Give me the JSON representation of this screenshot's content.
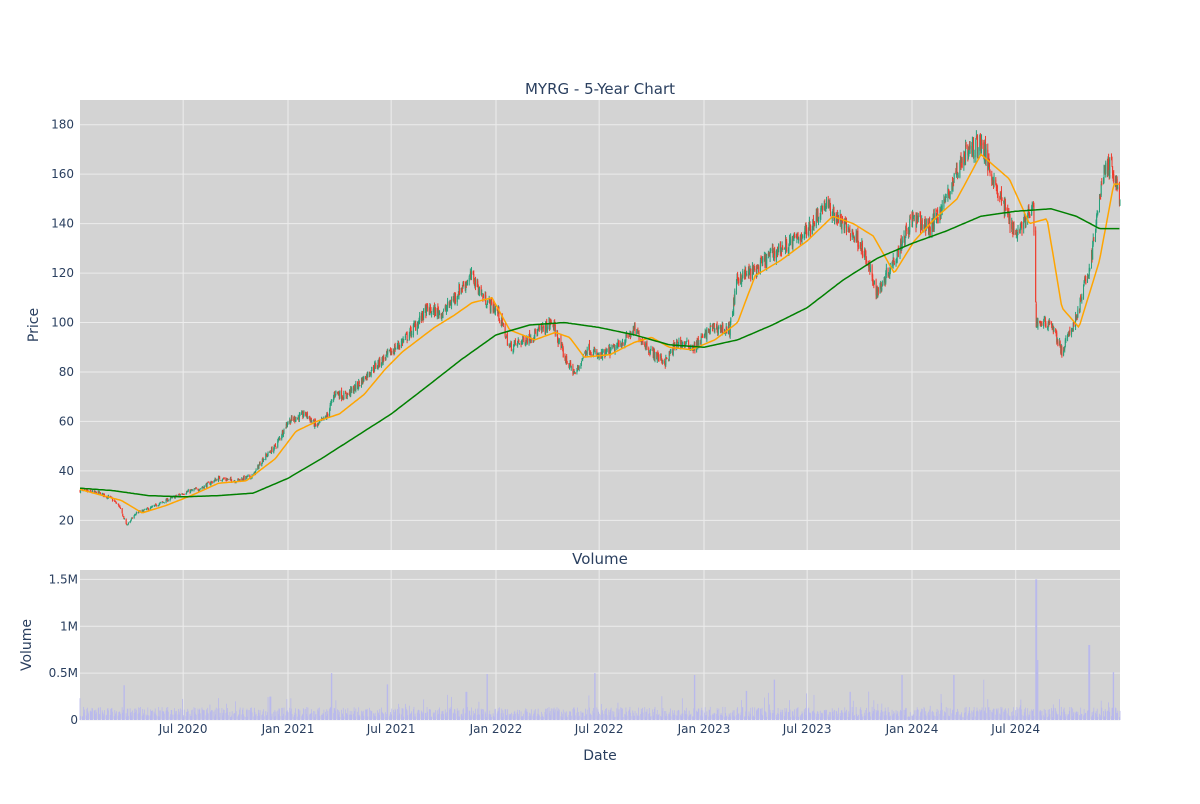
{
  "chart_data": {
    "type": "candlestick",
    "title": "MYRG - 5-Year Chart",
    "xlabel": "Date",
    "colors": {
      "background": "#d3d3d3",
      "grid": "#ececec",
      "up": "#26a17a",
      "down": "#ef3b2c",
      "ma_short": "#ffa500",
      "ma_long": "#008000",
      "volume": "#b9b9ec",
      "text": "#2a3f5f"
    },
    "price_panel": {
      "ylabel": "Price",
      "ylim": [
        8,
        190
      ],
      "yticks": [
        20,
        40,
        60,
        80,
        100,
        120,
        140,
        160,
        180
      ],
      "series": [
        {
          "name": "Close (candlestick)",
          "type": "candlestick"
        },
        {
          "name": "Short moving average",
          "color": "#ffa500"
        },
        {
          "name": "Long moving average",
          "color": "#008000"
        }
      ],
      "close_waypoints": [
        [
          "2020-01-02",
          32
        ],
        [
          "2020-02-05",
          31
        ],
        [
          "2020-02-25",
          29
        ],
        [
          "2020-03-10",
          26
        ],
        [
          "2020-03-24",
          18
        ],
        [
          "2020-04-10",
          23
        ],
        [
          "2020-05-05",
          25
        ],
        [
          "2020-06-01",
          28
        ],
        [
          "2020-07-01",
          31
        ],
        [
          "2020-08-01",
          33
        ],
        [
          "2020-09-01",
          37
        ],
        [
          "2020-10-01",
          36
        ],
        [
          "2020-11-01",
          38
        ],
        [
          "2020-11-15",
          44
        ],
        [
          "2020-12-10",
          50
        ],
        [
          "2021-01-01",
          60
        ],
        [
          "2021-02-01",
          63
        ],
        [
          "2021-02-20",
          58
        ],
        [
          "2021-03-10",
          62
        ],
        [
          "2021-03-25",
          72
        ],
        [
          "2021-04-10",
          70
        ],
        [
          "2021-05-01",
          74
        ],
        [
          "2021-06-01",
          82
        ],
        [
          "2021-07-01",
          88
        ],
        [
          "2021-08-01",
          95
        ],
        [
          "2021-09-01",
          105
        ],
        [
          "2021-10-01",
          104
        ],
        [
          "2021-11-01",
          114
        ],
        [
          "2021-11-20",
          119
        ],
        [
          "2021-12-10",
          110
        ],
        [
          "2022-01-05",
          104
        ],
        [
          "2022-01-25",
          90
        ],
        [
          "2022-03-01",
          94
        ],
        [
          "2022-04-10",
          100
        ],
        [
          "2022-05-01",
          86
        ],
        [
          "2022-05-20",
          79
        ],
        [
          "2022-06-10",
          90
        ],
        [
          "2022-07-01",
          86
        ],
        [
          "2022-08-01",
          90
        ],
        [
          "2022-09-01",
          97
        ],
        [
          "2022-10-01",
          88
        ],
        [
          "2022-10-25",
          84
        ],
        [
          "2022-11-15",
          92
        ],
        [
          "2022-12-15",
          90
        ],
        [
          "2023-01-15",
          98
        ],
        [
          "2023-02-15",
          97
        ],
        [
          "2023-03-01",
          118
        ],
        [
          "2023-04-01",
          121
        ],
        [
          "2023-05-01",
          128
        ],
        [
          "2023-06-01",
          132
        ],
        [
          "2023-07-01",
          137
        ],
        [
          "2023-08-01",
          148
        ],
        [
          "2023-09-01",
          140
        ],
        [
          "2023-10-01",
          133
        ],
        [
          "2023-11-01",
          112
        ],
        [
          "2023-12-01",
          126
        ],
        [
          "2024-01-01",
          142
        ],
        [
          "2024-02-01",
          138
        ],
        [
          "2024-03-01",
          150
        ],
        [
          "2024-04-01",
          168
        ],
        [
          "2024-05-01",
          173
        ],
        [
          "2024-06-01",
          152
        ],
        [
          "2024-07-01",
          136
        ],
        [
          "2024-08-01",
          146
        ],
        [
          "2024-08-06",
          100
        ],
        [
          "2024-09-01",
          100
        ],
        [
          "2024-09-20",
          88
        ],
        [
          "2024-10-15",
          102
        ],
        [
          "2024-11-10",
          125
        ],
        [
          "2024-12-01",
          160
        ],
        [
          "2024-12-15",
          164
        ],
        [
          "2024-12-31",
          150
        ]
      ],
      "ma_short_waypoints": [
        [
          "2020-01-02",
          32.5
        ],
        [
          "2020-03-15",
          28
        ],
        [
          "2020-04-20",
          23
        ],
        [
          "2020-06-01",
          26
        ],
        [
          "2020-07-15",
          30
        ],
        [
          "2020-09-01",
          35
        ],
        [
          "2020-10-20",
          36
        ],
        [
          "2020-12-10",
          45
        ],
        [
          "2021-01-15",
          56
        ],
        [
          "2021-02-20",
          60
        ],
        [
          "2021-04-01",
          63
        ],
        [
          "2021-05-15",
          71
        ],
        [
          "2021-06-20",
          81
        ],
        [
          "2021-07-20",
          88
        ],
        [
          "2021-09-15",
          98
        ],
        [
          "2021-10-20",
          103
        ],
        [
          "2021-11-20",
          108
        ],
        [
          "2021-12-25",
          110
        ],
        [
          "2022-01-25",
          97
        ],
        [
          "2022-03-10",
          93
        ],
        [
          "2022-04-15",
          96
        ],
        [
          "2022-05-10",
          94
        ],
        [
          "2022-06-05",
          86
        ],
        [
          "2022-07-20",
          87
        ],
        [
          "2022-09-01",
          92
        ],
        [
          "2022-10-01",
          94
        ],
        [
          "2022-11-01",
          90
        ],
        [
          "2022-12-10",
          89
        ],
        [
          "2023-01-20",
          93
        ],
        [
          "2023-03-01",
          100
        ],
        [
          "2023-04-01",
          119
        ],
        [
          "2023-05-15",
          125
        ],
        [
          "2023-07-01",
          133
        ],
        [
          "2023-08-15",
          143
        ],
        [
          "2023-09-20",
          140
        ],
        [
          "2023-10-25",
          135
        ],
        [
          "2023-12-01",
          120
        ],
        [
          "2024-01-05",
          133
        ],
        [
          "2024-02-10",
          142
        ],
        [
          "2024-03-20",
          150
        ],
        [
          "2024-05-01",
          168
        ],
        [
          "2024-06-20",
          158
        ],
        [
          "2024-07-25",
          140
        ],
        [
          "2024-08-25",
          142
        ],
        [
          "2024-09-20",
          106
        ],
        [
          "2024-10-20",
          98
        ],
        [
          "2024-11-25",
          125
        ],
        [
          "2024-12-20",
          156
        ],
        [
          "2024-12-31",
          156
        ]
      ],
      "ma_long_waypoints": [
        [
          "2020-01-02",
          33
        ],
        [
          "2020-03-01",
          32
        ],
        [
          "2020-05-01",
          30
        ],
        [
          "2020-07-01",
          29.5
        ],
        [
          "2020-09-01",
          30
        ],
        [
          "2020-11-01",
          31
        ],
        [
          "2021-01-01",
          37
        ],
        [
          "2021-03-01",
          45
        ],
        [
          "2021-05-01",
          54
        ],
        [
          "2021-07-01",
          63
        ],
        [
          "2021-09-01",
          74
        ],
        [
          "2021-11-01",
          85
        ],
        [
          "2022-01-01",
          95
        ],
        [
          "2022-03-01",
          99
        ],
        [
          "2022-05-01",
          100
        ],
        [
          "2022-07-01",
          98
        ],
        [
          "2022-09-01",
          95
        ],
        [
          "2022-11-01",
          91
        ],
        [
          "2023-01-01",
          90
        ],
        [
          "2023-03-01",
          93
        ],
        [
          "2023-05-01",
          99
        ],
        [
          "2023-07-01",
          106
        ],
        [
          "2023-09-01",
          117
        ],
        [
          "2023-11-01",
          126
        ],
        [
          "2024-01-01",
          132
        ],
        [
          "2024-03-01",
          137
        ],
        [
          "2024-05-01",
          143
        ],
        [
          "2024-07-01",
          145
        ],
        [
          "2024-09-01",
          146
        ],
        [
          "2024-10-15",
          143
        ],
        [
          "2024-11-25",
          138
        ],
        [
          "2024-12-31",
          138
        ]
      ]
    },
    "volume_panel": {
      "title": "Volume",
      "ylabel": "Volume",
      "ylim": [
        0,
        1600000
      ],
      "yticks": [
        0,
        500000,
        1000000,
        1500000
      ],
      "ytick_labels": [
        "0",
        "0.5M",
        "1M",
        "1.5M"
      ],
      "typical_daily_volume": 100000,
      "spikes": [
        [
          "2020-03-20",
          370000
        ],
        [
          "2020-12-01",
          250000
        ],
        [
          "2021-03-19",
          500000
        ],
        [
          "2021-06-25",
          380000
        ],
        [
          "2021-11-10",
          300000
        ],
        [
          "2021-12-17",
          490000
        ],
        [
          "2022-06-24",
          500000
        ],
        [
          "2022-12-16",
          480000
        ],
        [
          "2023-03-17",
          310000
        ],
        [
          "2023-05-05",
          430000
        ],
        [
          "2023-09-15",
          300000
        ],
        [
          "2023-12-15",
          480000
        ],
        [
          "2024-03-15",
          480000
        ],
        [
          "2024-05-05",
          430000
        ],
        [
          "2024-08-06",
          1500000
        ],
        [
          "2024-08-09",
          640000
        ],
        [
          "2024-11-07",
          800000
        ],
        [
          "2024-12-20",
          510000
        ]
      ]
    },
    "x_axis": {
      "start": "2020-01-02",
      "end": "2024-12-31",
      "ticks": [
        {
          "date": "2020-07-01",
          "label": "Jul 2020"
        },
        {
          "date": "2021-01-01",
          "label": "Jan 2021"
        },
        {
          "date": "2021-07-01",
          "label": "Jul 2021"
        },
        {
          "date": "2022-01-01",
          "label": "Jan 2022"
        },
        {
          "date": "2022-07-01",
          "label": "Jul 2022"
        },
        {
          "date": "2023-01-01",
          "label": "Jan 2023"
        },
        {
          "date": "2023-07-01",
          "label": "Jul 2023"
        },
        {
          "date": "2024-01-01",
          "label": "Jan 2024"
        },
        {
          "date": "2024-07-01",
          "label": "Jul 2024"
        }
      ]
    },
    "grid": true,
    "legend": "none"
  }
}
